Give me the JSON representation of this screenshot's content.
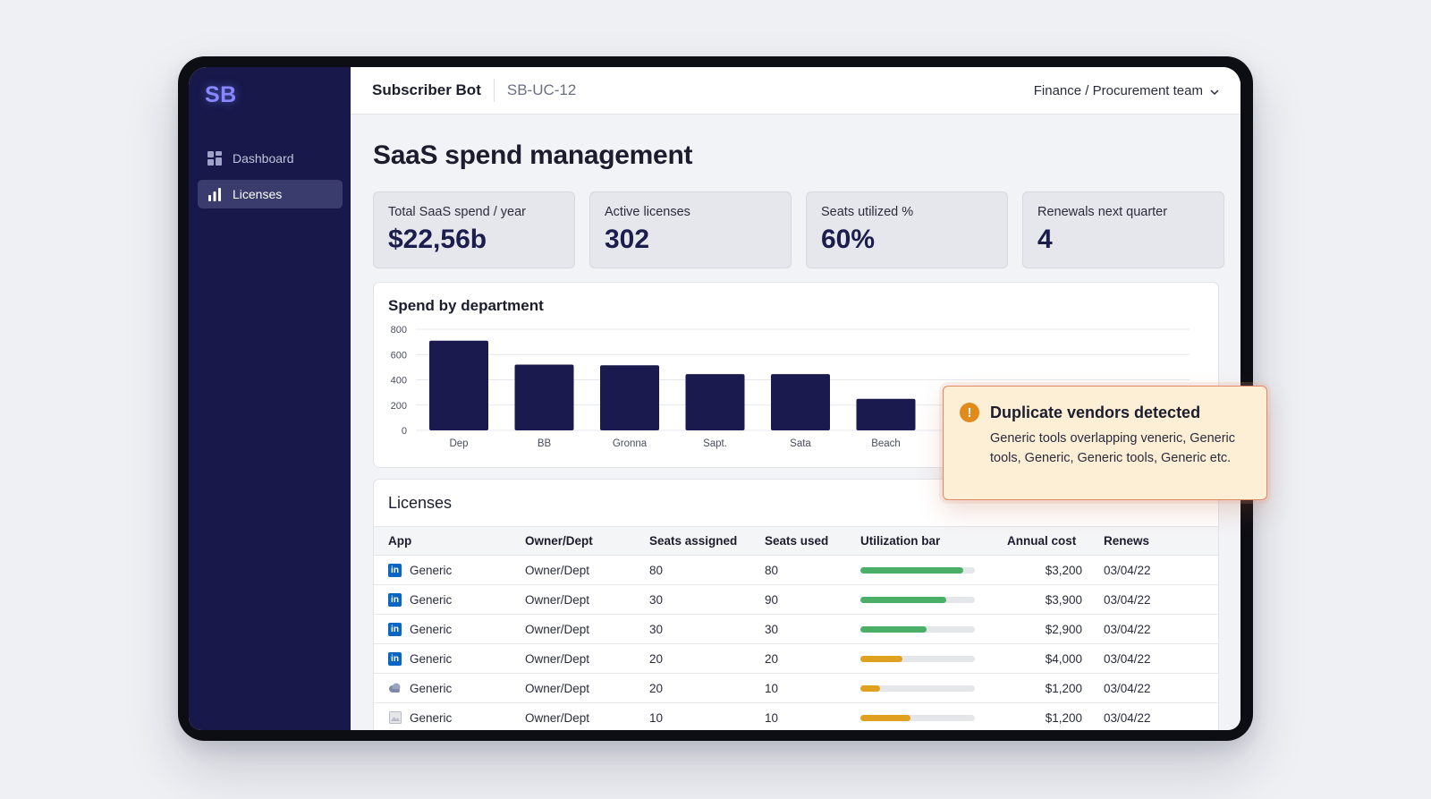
{
  "sidebar": {
    "logo": "SB",
    "items": [
      {
        "label": "Dashboard",
        "icon": "grid-icon"
      },
      {
        "label": "Licenses",
        "icon": "bar-chart-icon"
      }
    ]
  },
  "header": {
    "app_name": "Subscriber Bot",
    "app_id": "SB-UC-12",
    "team": "Finance / Procurement team"
  },
  "page": {
    "title": "SaaS spend management"
  },
  "kpis": [
    {
      "label": "Total SaaS spend / year",
      "value": "$22,56b"
    },
    {
      "label": "Active licenses",
      "value": "302"
    },
    {
      "label": "Seats utilized %",
      "value": "60%"
    },
    {
      "label": "Renewals next quarter",
      "value": "4"
    }
  ],
  "chart_data": {
    "type": "bar",
    "title": "Spend by department",
    "categories": [
      "Dep",
      "BB",
      "Gronna",
      "Sapt.",
      "Sata",
      "Beach"
    ],
    "values": [
      710,
      520,
      515,
      445,
      445,
      250
    ],
    "yticks": [
      0,
      200,
      400,
      600,
      800
    ],
    "ylim": [
      0,
      800
    ],
    "bar_color": "#1b1a4e",
    "grid": true
  },
  "licenses": {
    "title": "Licenses",
    "columns": [
      "App",
      "Owner/Dept",
      "Seats assigned",
      "Seats used",
      "Utilization bar",
      "Annual cost",
      "Renews"
    ],
    "rows": [
      {
        "app": "Generic",
        "icon": "linkedin-icon",
        "owner": "Owner/Dept",
        "seats": "80",
        "used": "80",
        "util": 0.9,
        "util_color": "#4caf68",
        "cost": "$3,200",
        "renews": "03/04/22"
      },
      {
        "app": "Generic",
        "icon": "linkedin-icon",
        "owner": "Owner/Dept",
        "seats": "30",
        "used": "90",
        "util": 0.75,
        "util_color": "#4caf68",
        "cost": "$3,900",
        "renews": "03/04/22"
      },
      {
        "app": "Generic",
        "icon": "linkedin-icon",
        "owner": "Owner/Dept",
        "seats": "30",
        "used": "30",
        "util": 0.58,
        "util_color": "#4caf68",
        "cost": "$2,900",
        "renews": "03/04/22"
      },
      {
        "app": "Generic",
        "icon": "linkedin-icon",
        "owner": "Owner/Dept",
        "seats": "20",
        "used": "20",
        "util": 0.37,
        "util_color": "#e0a020",
        "cost": "$4,000",
        "renews": "03/04/22"
      },
      {
        "app": "Generic",
        "icon": "cloud-icon",
        "owner": "Owner/Dept",
        "seats": "20",
        "used": "10",
        "util": 0.17,
        "util_color": "#e0a020",
        "cost": "$1,200",
        "renews": "03/04/22"
      },
      {
        "app": "Generic",
        "icon": "image-icon",
        "owner": "Owner/Dept",
        "seats": "10",
        "used": "10",
        "util": 0.44,
        "util_color": "#e0a020",
        "cost": "$1,200",
        "renews": "03/04/22"
      }
    ]
  },
  "alert": {
    "title": "Duplicate vendors detected",
    "body": "Generic tools overlapping veneric, Generic tools, Generic, Generic tools, Generic etc.",
    "icon": "warning-icon"
  }
}
